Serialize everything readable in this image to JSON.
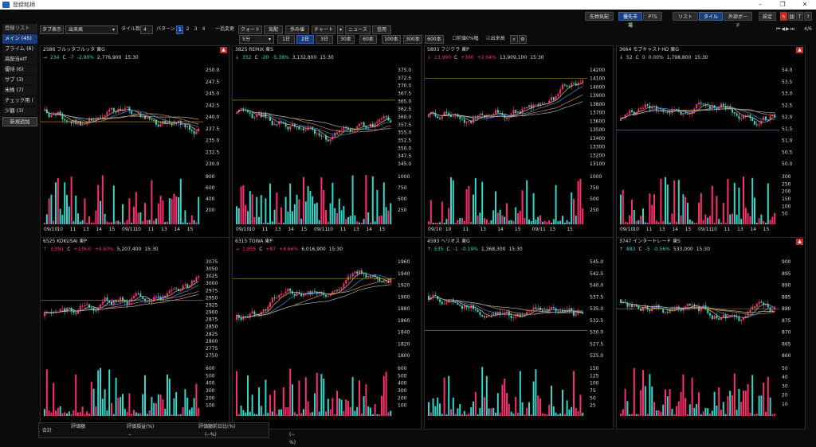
{
  "window": {
    "title": "登録銘柄"
  },
  "topbar": {
    "buttons": [
      "先物気配",
      "優先市場",
      "PTS",
      "リスト",
      "タイル",
      "外部ボード",
      "設定"
    ],
    "page_indicator": "4/6",
    "colors": {
      "active": "#1b3f7a"
    }
  },
  "sidebar": {
    "header": "登録リスト",
    "items": [
      "メイン (45)",
      "プライム (6)",
      "高配当etf",
      "優待 (6)",
      "サブ (3)",
      "米株 (7)",
      "チェック用 (",
      "少額 (3)"
    ],
    "new_button": "新規追加"
  },
  "toolbar": {
    "tab_display": "タブ表示",
    "sort_select": "出来高",
    "tile_count_label": "タイル数",
    "tile_count_value": "4",
    "pattern_label": "パターン",
    "patterns": [
      "1",
      "2",
      "3",
      "4"
    ],
    "bulk_change": "一括変更",
    "quote_btn": "クォート",
    "board_btn": "気配",
    "tick_btn": "歩み値",
    "chart_btn": "チャート",
    "news_btn": "ニュース",
    "credit_btn": "信用",
    "interval_select": "5分",
    "ranges": [
      "1日",
      "2日",
      "3日",
      "30本",
      "60本",
      "100本",
      "300本",
      "600本"
    ],
    "prev_close_label": "前値0%幅",
    "volume_label": "出来高"
  },
  "panels": [
    {
      "code": "2586",
      "name": "フルッタフルッタ",
      "market": "東G",
      "arrow": "→",
      "price": "234",
      "flag": "C",
      "change": "-7",
      "pct": "-2.90%",
      "volume": "2,776,900",
      "time": "15:30",
      "dir": "down",
      "yticks": [
        "250.0",
        "247.5",
        "245.0",
        "242.5",
        "240.0",
        "237.5",
        "235.0",
        "232.5",
        "230.0"
      ],
      "vticks": [
        "800",
        "600",
        "400",
        "200"
      ],
      "xlabels": [
        "09/10",
        "10",
        "11",
        "13",
        "14",
        "15",
        "09/11",
        "10",
        "11",
        "13",
        "14",
        "15"
      ],
      "alert": true
    },
    {
      "code": "3825",
      "name": "REMIX",
      "market": "東S",
      "arrow": "↓",
      "price": "352",
      "flag": "C",
      "change": "-20",
      "pct": "-5.38%",
      "volume": "3,132,800",
      "time": "15:30",
      "dir": "down",
      "yticks": [
        "375.0",
        "372.5",
        "370.0",
        "367.5",
        "365.0",
        "362.5",
        "360.0",
        "357.5",
        "355.0",
        "352.5",
        "350.0",
        "347.5",
        "345.0"
      ],
      "vticks": [
        "1000",
        "750",
        "500",
        "250"
      ],
      "xlabels": [
        "09/10",
        "10",
        "11",
        "13",
        "14",
        "15",
        "09/11",
        "10",
        "11",
        "13",
        "14",
        "15"
      ],
      "alert": false
    },
    {
      "code": "5803",
      "name": "フジクラ",
      "market": "東P",
      "arrow": "↓",
      "price": "13,990",
      "flag": "C",
      "change": "+360",
      "pct": "+2.64%",
      "volume": "13,909,100",
      "time": "15:30",
      "dir": "up",
      "yticks": [
        "14200",
        "14100",
        "14000",
        "13900",
        "13800",
        "13700",
        "13600",
        "13500",
        "13400",
        "13300",
        "13200",
        "13100"
      ],
      "vticks": [
        "1000",
        "750",
        "500",
        "250"
      ],
      "xlabels": [
        "09/10",
        "10",
        "11",
        "13",
        "14",
        "15",
        "09/11",
        "13",
        "15"
      ],
      "alert": false
    },
    {
      "code": "3664",
      "name": "モブキャストHD",
      "market": "東G",
      "arrow": "↓",
      "price": "52",
      "flag": "C",
      "change": "0",
      "pct": "0.00%",
      "volume": "1,798,800",
      "time": "15:30",
      "dir": "flat",
      "yticks": [
        "54.0",
        "53.5",
        "53.0",
        "52.5",
        "52.0",
        "51.5",
        "51.0",
        "50.5",
        "50.0"
      ],
      "vticks": [
        "300",
        "250",
        "200",
        "150",
        "100",
        "50"
      ],
      "xlabels": [
        "09/10",
        "10",
        "11",
        "13",
        "14",
        "15",
        "09/11",
        "10",
        "11",
        "13",
        "14",
        "15"
      ],
      "alert": true
    },
    {
      "code": "6525",
      "name": "KOKUSAI",
      "market": "東P",
      "arrow": "↑",
      "price": "3,091",
      "flag": "C",
      "change": "+136.0",
      "pct": "+4.60%",
      "volume": "5,207,400",
      "time": "15:30",
      "dir": "up",
      "yticks": [
        "3075",
        "3050",
        "3025",
        "3000",
        "2975",
        "2950",
        "2925",
        "2900",
        "2875",
        "2850",
        "2825",
        "2800",
        "2775",
        "2750"
      ],
      "vticks": [
        "600",
        "500",
        "400",
        "300",
        "200",
        "100"
      ],
      "xlabels": [],
      "alert": false
    },
    {
      "code": "6315",
      "name": "TOWA",
      "market": "東P",
      "arrow": "→",
      "price": "1,955",
      "flag": "C",
      "change": "+87",
      "pct": "+4.66%",
      "volume": "6,016,900",
      "time": "15:30",
      "dir": "up",
      "yticks": [
        "1960",
        "1940",
        "1920",
        "1900",
        "1880",
        "1860",
        "1840",
        "1820",
        "1800"
      ],
      "vticks": [
        "600",
        "500",
        "400",
        "300",
        "200",
        "100"
      ],
      "xlabels": [],
      "alert": false
    },
    {
      "code": "4593",
      "name": "ヘリオス",
      "market": "東G",
      "arrow": "↑",
      "price": "535",
      "flag": "C",
      "change": "-1",
      "pct": "-0.19%",
      "volume": "1,368,300",
      "time": "15:30",
      "dir": "down",
      "yticks": [
        "545.0",
        "542.5",
        "540.0",
        "537.5",
        "535.0",
        "532.5",
        "530.0",
        "527.5",
        "525.0"
      ],
      "vticks": [
        "150",
        "125",
        "100",
        "75",
        "50",
        "25"
      ],
      "xlabels": [],
      "alert": false
    },
    {
      "code": "3747",
      "name": "インタートレード",
      "market": "東S",
      "arrow": "↑",
      "price": "883",
      "flag": "C",
      "change": "-5",
      "pct": "-0.56%",
      "volume": "533,000",
      "time": "15:30",
      "dir": "down",
      "yticks": [
        "900",
        "895",
        "890",
        "885",
        "880",
        "875",
        "870",
        "865",
        "860"
      ],
      "vticks": [
        "50",
        "40",
        "30",
        "20",
        "10"
      ],
      "xlabels": [],
      "alert": true
    }
  ],
  "footer": {
    "total": "合計",
    "eval": "評価額",
    "eval_gain": "評価損益(%)",
    "prev_ratio": "評価額前日比(%)",
    "v1": "--",
    "v2": "(--%)",
    "v3": "(--%)"
  },
  "colors": {
    "up": "#ff2d6f",
    "down": "#33d6c9",
    "ma1": "#d4c26a",
    "ma2": "#3b8ed8",
    "ma3": "#b0b0b0",
    "ma4": "#d48a4a",
    "hline": "#c9a13a"
  }
}
